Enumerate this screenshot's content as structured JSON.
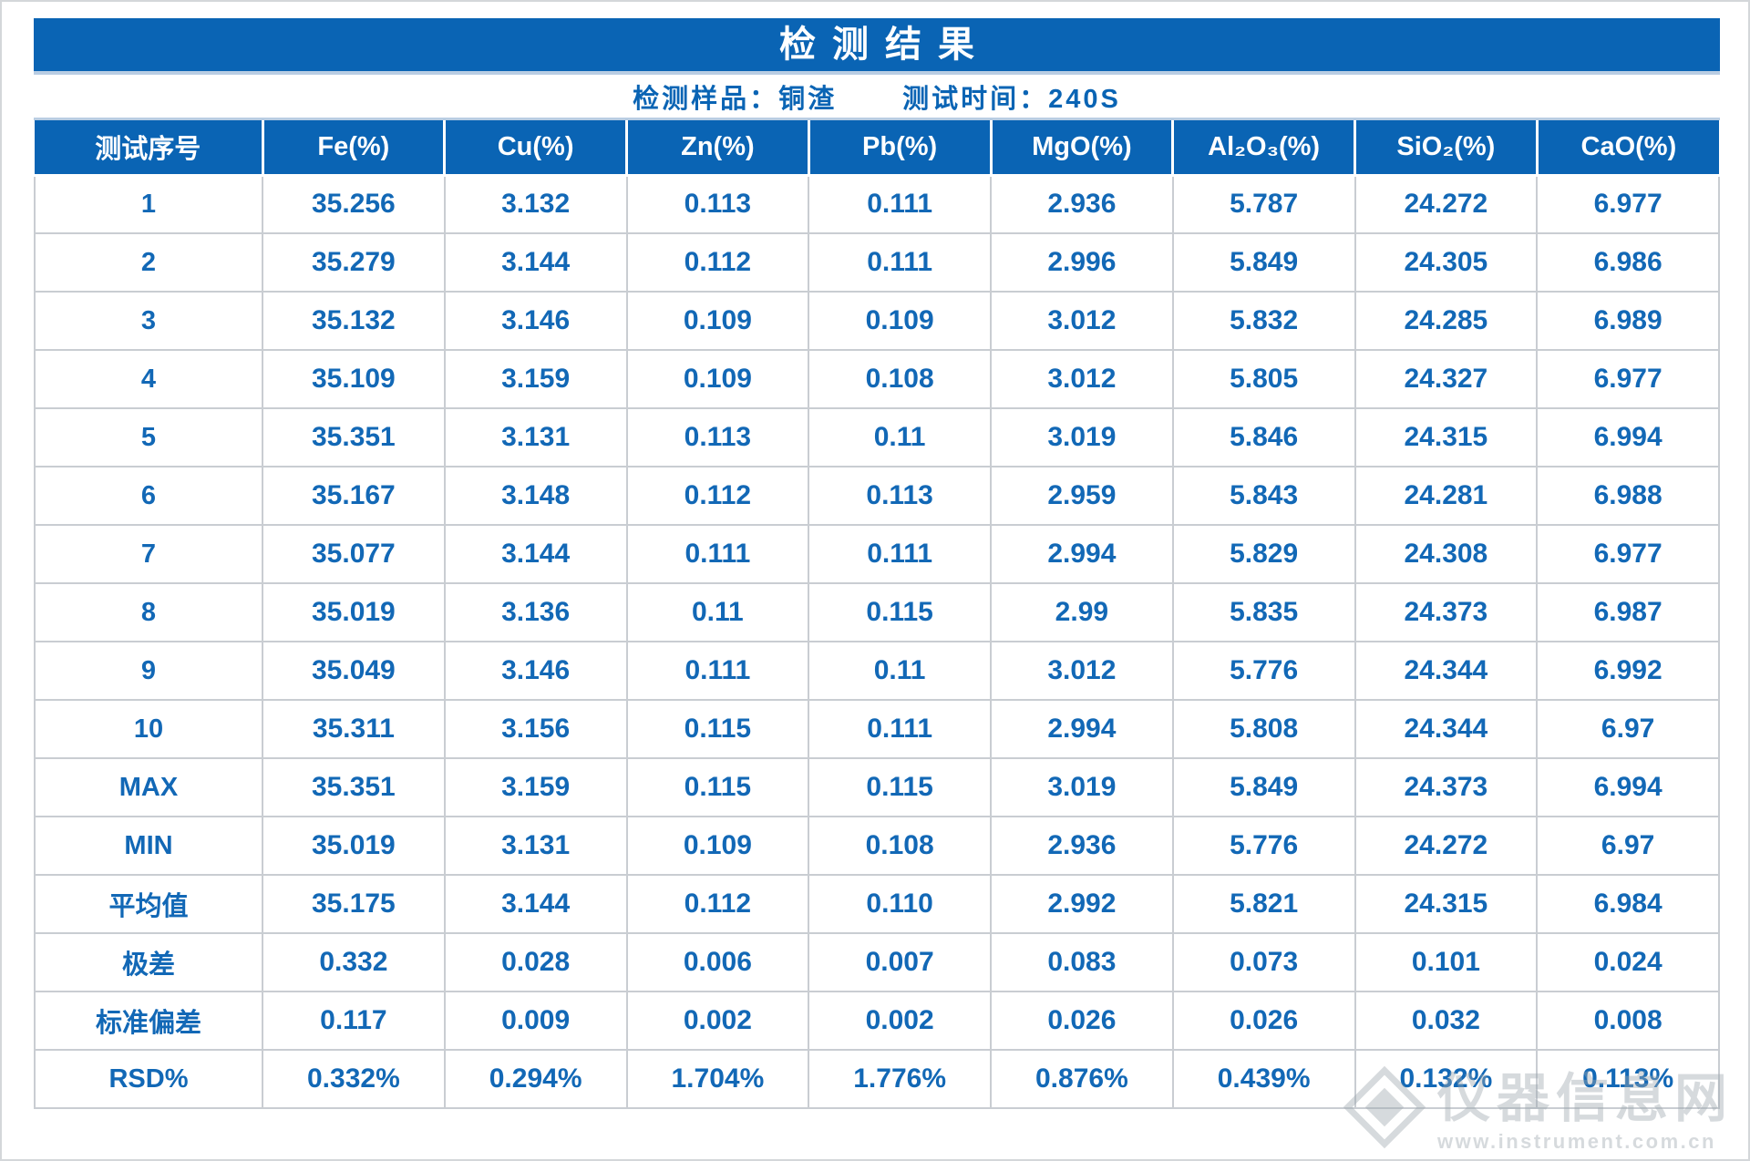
{
  "title": "检测结果",
  "subtitle": {
    "sample_label": "检测样品：铜渣",
    "time_label": "测试时间：240S"
  },
  "table": {
    "headers": [
      "测试序号",
      "Fe(%)",
      "Cu(%)",
      "Zn(%)",
      "Pb(%)",
      "MgO(%)",
      "Al₂O₃(%)",
      "SiO₂(%)",
      "CaO(%)"
    ],
    "rows": [
      {
        "label": "1",
        "values": [
          "35.256",
          "3.132",
          "0.113",
          "0.111",
          "2.936",
          "5.787",
          "24.272",
          "6.977"
        ]
      },
      {
        "label": "2",
        "values": [
          "35.279",
          "3.144",
          "0.112",
          "0.111",
          "2.996",
          "5.849",
          "24.305",
          "6.986"
        ]
      },
      {
        "label": "3",
        "values": [
          "35.132",
          "3.146",
          "0.109",
          "0.109",
          "3.012",
          "5.832",
          "24.285",
          "6.989"
        ]
      },
      {
        "label": "4",
        "values": [
          "35.109",
          "3.159",
          "0.109",
          "0.108",
          "3.012",
          "5.805",
          "24.327",
          "6.977"
        ]
      },
      {
        "label": "5",
        "values": [
          "35.351",
          "3.131",
          "0.113",
          "0.11",
          "3.019",
          "5.846",
          "24.315",
          "6.994"
        ]
      },
      {
        "label": "6",
        "values": [
          "35.167",
          "3.148",
          "0.112",
          "0.113",
          "2.959",
          "5.843",
          "24.281",
          "6.988"
        ]
      },
      {
        "label": "7",
        "values": [
          "35.077",
          "3.144",
          "0.111",
          "0.111",
          "2.994",
          "5.829",
          "24.308",
          "6.977"
        ]
      },
      {
        "label": "8",
        "values": [
          "35.019",
          "3.136",
          "0.11",
          "0.115",
          "2.99",
          "5.835",
          "24.373",
          "6.987"
        ]
      },
      {
        "label": "9",
        "values": [
          "35.049",
          "3.146",
          "0.111",
          "0.11",
          "3.012",
          "5.776",
          "24.344",
          "6.992"
        ]
      },
      {
        "label": "10",
        "values": [
          "35.311",
          "3.156",
          "0.115",
          "0.111",
          "2.994",
          "5.808",
          "24.344",
          "6.97"
        ]
      },
      {
        "label": "MAX",
        "values": [
          "35.351",
          "3.159",
          "0.115",
          "0.115",
          "3.019",
          "5.849",
          "24.373",
          "6.994"
        ]
      },
      {
        "label": "MIN",
        "values": [
          "35.019",
          "3.131",
          "0.109",
          "0.108",
          "2.936",
          "5.776",
          "24.272",
          "6.97"
        ]
      },
      {
        "label": "平均值",
        "values": [
          "35.175",
          "3.144",
          "0.112",
          "0.110",
          "2.992",
          "5.821",
          "24.315",
          "6.984"
        ]
      },
      {
        "label": "极差",
        "values": [
          "0.332",
          "0.028",
          "0.006",
          "0.007",
          "0.083",
          "0.073",
          "0.101",
          "0.024"
        ]
      },
      {
        "label": "标准偏差",
        "values": [
          "0.117",
          "0.009",
          "0.002",
          "0.002",
          "0.026",
          "0.026",
          "0.032",
          "0.008"
        ]
      },
      {
        "label": "RSD%",
        "values": [
          "0.332%",
          "0.294%",
          "1.704%",
          "1.776%",
          "0.876%",
          "0.439%",
          "0.132%",
          "0.113%"
        ]
      }
    ]
  },
  "watermark": {
    "site_name": "仪器信息网",
    "site_url": "www.instrument.com.cn"
  },
  "colors": {
    "accent_blue": "#0a64b4",
    "data_text_blue": "#1268b6",
    "cell_border_gray": "#c9cdd2",
    "separator_light_blue": "#b9cde3"
  }
}
